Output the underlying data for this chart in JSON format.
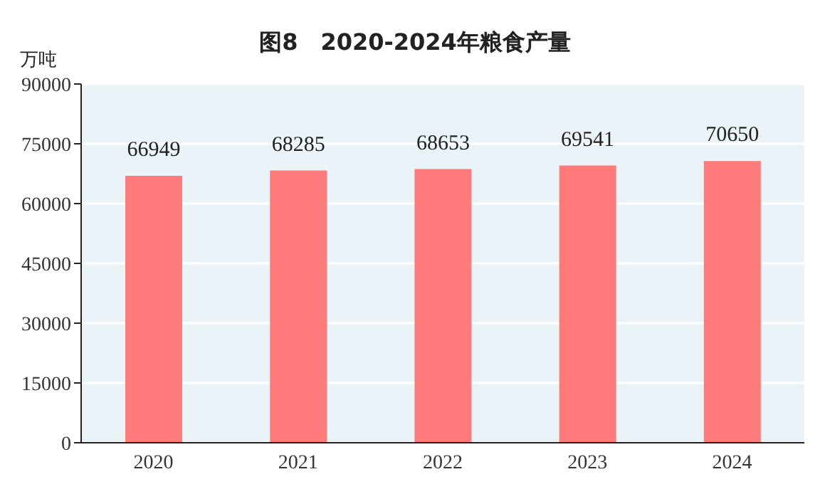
{
  "chart_data": {
    "type": "bar",
    "title": "图8　2020-2024年粮食产量",
    "ylabel": "万吨",
    "categories": [
      "2020",
      "2021",
      "2022",
      "2023",
      "2024"
    ],
    "values": [
      66949,
      68285,
      68653,
      69541,
      70650
    ],
    "color": "#ff7b7b",
    "ylim": [
      0,
      90000
    ],
    "yticks": [
      0,
      15000,
      30000,
      45000,
      60000,
      75000,
      90000
    ],
    "grid": "y",
    "data_labels": true
  }
}
